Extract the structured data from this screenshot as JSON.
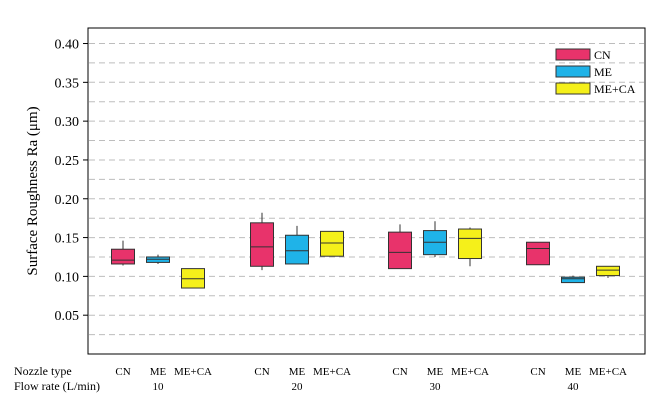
{
  "chart_data": {
    "type": "box",
    "ylabel": "Surface Roughness Ra (μm)",
    "ylim": [
      0.0,
      0.42
    ],
    "yticks": [
      0.05,
      0.1,
      0.15,
      0.2,
      0.25,
      0.3,
      0.35,
      0.4
    ],
    "ytick_labels": [
      "0.05",
      "0.10",
      "0.15",
      "0.20",
      "0.25",
      "0.30",
      "0.35",
      "0.40"
    ],
    "grid": "dashed-horizontal",
    "legend": {
      "position": "top-right"
    },
    "row_labels": {
      "nozzle": "Nozzle type",
      "flow": "Flow rate (L/min)"
    },
    "series": [
      {
        "name": "CN",
        "color": "#e8336b"
      },
      {
        "name": "ME",
        "color": "#1fb3e8"
      },
      {
        "name": "ME+CA",
        "color": "#f5f01a"
      }
    ],
    "groups": [
      {
        "flow_rate": "10",
        "boxes": [
          {
            "nozzle": "CN",
            "series": 0,
            "min": 0.114,
            "q1": 0.116,
            "median": 0.121,
            "q3": 0.135,
            "max": 0.146
          },
          {
            "nozzle": "ME",
            "series": 1,
            "min": 0.116,
            "q1": 0.118,
            "median": 0.122,
            "q3": 0.125,
            "max": 0.128
          },
          {
            "nozzle": "ME+CA",
            "series": 2,
            "min": 0.085,
            "q1": 0.085,
            "median": 0.097,
            "q3": 0.11,
            "max": 0.11
          }
        ]
      },
      {
        "flow_rate": "20",
        "boxes": [
          {
            "nozzle": "CN",
            "series": 0,
            "min": 0.108,
            "q1": 0.113,
            "median": 0.138,
            "q3": 0.169,
            "max": 0.182
          },
          {
            "nozzle": "ME",
            "series": 1,
            "min": 0.116,
            "q1": 0.116,
            "median": 0.133,
            "q3": 0.153,
            "max": 0.165
          },
          {
            "nozzle": "ME+CA",
            "series": 2,
            "min": 0.126,
            "q1": 0.126,
            "median": 0.143,
            "q3": 0.158,
            "max": 0.158
          }
        ]
      },
      {
        "flow_rate": "30",
        "boxes": [
          {
            "nozzle": "CN",
            "series": 0,
            "min": 0.11,
            "q1": 0.11,
            "median": 0.131,
            "q3": 0.157,
            "max": 0.167
          },
          {
            "nozzle": "ME",
            "series": 1,
            "min": 0.125,
            "q1": 0.128,
            "median": 0.144,
            "q3": 0.159,
            "max": 0.171
          },
          {
            "nozzle": "ME+CA",
            "series": 2,
            "min": 0.113,
            "q1": 0.123,
            "median": 0.149,
            "q3": 0.161,
            "max": 0.163
          }
        ]
      },
      {
        "flow_rate": "40",
        "boxes": [
          {
            "nozzle": "CN",
            "series": 0,
            "min": 0.115,
            "q1": 0.115,
            "median": 0.136,
            "q3": 0.144,
            "max": 0.144
          },
          {
            "nozzle": "ME",
            "series": 1,
            "min": 0.092,
            "q1": 0.092,
            "median": 0.097,
            "q3": 0.099,
            "max": 0.101
          },
          {
            "nozzle": "ME+CA",
            "series": 2,
            "min": 0.098,
            "q1": 0.101,
            "median": 0.108,
            "q3": 0.113,
            "max": 0.113
          }
        ]
      }
    ]
  }
}
